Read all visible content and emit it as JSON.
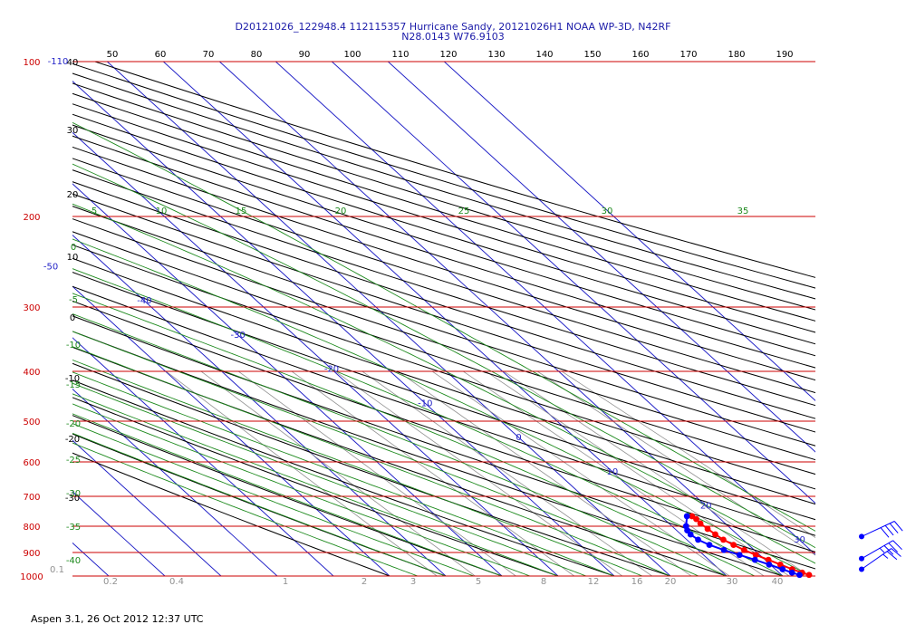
{
  "title_line1": "D20121026_122948.4 112115357 Hurricane Sandy, 20121026H1 NOAA WP-3D, N42RF",
  "title_line2": "N28.0143 W76.9103",
  "footer": "Aspen 3.1, 26 Oct 2012  12:37 UTC",
  "chart_data": {
    "type": "line",
    "chart_kind": "skew-T log-p thermodynamic diagram",
    "y_scale": "log",
    "pressure_levels": [
      100,
      200,
      300,
      400,
      500,
      600,
      700,
      800,
      900,
      1000
    ],
    "ylim": [
      1000,
      100
    ],
    "top_tick_labels": [
      "50",
      "60",
      "70",
      "80",
      "90",
      "100",
      "110",
      "120",
      "130",
      "140",
      "150",
      "160",
      "170",
      "180",
      "190"
    ],
    "isotherm_labels": [
      {
        "text": "-110",
        "value": -110
      },
      {
        "text": "-100",
        "value": -100
      },
      {
        "text": "-90",
        "value": -90
      },
      {
        "text": "-80",
        "value": -80
      },
      {
        "text": "-70",
        "value": -70
      },
      {
        "text": "-60",
        "value": -60
      },
      {
        "text": "-50",
        "value": -50
      },
      {
        "text": "-40",
        "value": -40
      },
      {
        "text": "-30",
        "value": -30
      },
      {
        "text": "-20",
        "value": -20
      },
      {
        "text": "-10",
        "value": -10
      },
      {
        "text": "0",
        "value": 0
      },
      {
        "text": "10",
        "value": 10
      },
      {
        "text": "20",
        "value": 20
      },
      {
        "text": "30",
        "value": 30
      }
    ],
    "dry_adiabat_labels": [
      "40",
      "30",
      "20",
      "10",
      "0",
      "-10",
      "-20",
      "-30"
    ],
    "moist_adiabat_labels": [
      "5",
      "10",
      "15",
      "20",
      "25",
      "30",
      "35"
    ],
    "moist_adiabat_left_labels": [
      "0",
      "-5",
      "-10",
      "-15",
      "-20",
      "-25",
      "-30",
      "-35",
      "-40"
    ],
    "mixing_ratio_labels": [
      "0.1",
      "0.2",
      "0.4",
      "1",
      "2",
      "3",
      "5",
      "8",
      "12",
      "16",
      "20",
      "30",
      "40"
    ],
    "series": [
      {
        "color": "#ff0000",
        "points": [
          {
            "p": 765,
            "t": 15.5
          },
          {
            "p": 775,
            "t": 15.7
          },
          {
            "p": 790,
            "t": 15.6
          },
          {
            "p": 810,
            "t": 15.8
          },
          {
            "p": 830,
            "t": 16.1
          },
          {
            "p": 850,
            "t": 16.5
          },
          {
            "p": 870,
            "t": 17.3
          },
          {
            "p": 890,
            "t": 18.2
          },
          {
            "p": 910,
            "t": 19.3
          },
          {
            "p": 930,
            "t": 20.6
          },
          {
            "p": 950,
            "t": 21.8
          },
          {
            "p": 970,
            "t": 23.0
          },
          {
            "p": 985,
            "t": 24.1
          },
          {
            "p": 995,
            "t": 24.9
          }
        ]
      },
      {
        "color": "#0000ff",
        "points": [
          {
            "p": 765,
            "t": 14.6
          },
          {
            "p": 800,
            "t": 12.5
          },
          {
            "p": 815,
            "t": 11.9
          },
          {
            "p": 830,
            "t": 11.7
          },
          {
            "p": 850,
            "t": 12.0
          },
          {
            "p": 870,
            "t": 13.0
          },
          {
            "p": 890,
            "t": 14.6
          },
          {
            "p": 910,
            "t": 16.4
          },
          {
            "p": 930,
            "t": 18.2
          },
          {
            "p": 950,
            "t": 19.8
          },
          {
            "p": 970,
            "t": 21.3
          },
          {
            "p": 985,
            "t": 22.3
          },
          {
            "p": 995,
            "t": 23.2
          }
        ]
      }
    ],
    "wind_barbs": [
      {
        "p": 838,
        "direction_deg": 65,
        "speed_kt": 40
      },
      {
        "p": 925,
        "direction_deg": 60,
        "speed_kt": 35
      },
      {
        "p": 970,
        "direction_deg": 55,
        "speed_kt": 25
      }
    ],
    "colors": {
      "isobar": "#cc0000",
      "pressure_label": "#cc0000",
      "isotherm": "#2525c8",
      "dry_adiabat": "#000000",
      "moist_adiabat": "#1e8a1e",
      "mixing_ratio": "#909090",
      "temperature": "#ff0000",
      "dewpoint": "#0000ff"
    }
  }
}
